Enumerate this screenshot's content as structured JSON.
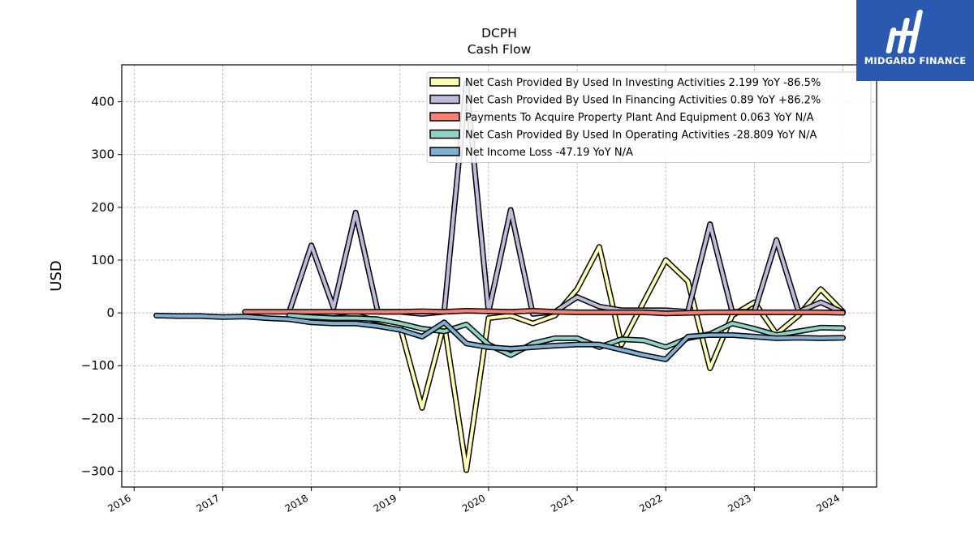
{
  "logo": {
    "text": "MIDGARD FINANCE",
    "bg": "#2b59b0"
  },
  "chart_data": {
    "type": "line",
    "title": "DCPH",
    "subtitle": "Cash Flow",
    "ylabel": "USD",
    "xlabel": "",
    "xlim": [
      2015.86,
      2024.38
    ],
    "ylim": [
      -330,
      470
    ],
    "xticks": [
      "2016",
      "2017",
      "2018",
      "2019",
      "2020",
      "2021",
      "2022",
      "2023",
      "2024"
    ],
    "yticks": [
      400,
      300,
      200,
      100,
      0,
      -100,
      -200,
      -300
    ],
    "ytick_labels": [
      "400",
      "300",
      "200",
      "100",
      "0",
      "−100",
      "−200",
      "−300"
    ],
    "grid": true,
    "legend_position": "top-right",
    "series": [
      {
        "name": "Net Cash Provided By Used In Investing Activities  2.199 YoY -86.5%",
        "color": "#ffffb3",
        "x": [
          2017.75,
          2018.0,
          2018.25,
          2018.5,
          2018.75,
          2019.0,
          2019.25,
          2019.5,
          2019.75,
          2020.0,
          2020.25,
          2020.5,
          2020.75,
          2021.0,
          2021.25,
          2021.5,
          2021.75,
          2022.0,
          2022.25,
          2022.5,
          2022.75,
          2023.0,
          2023.25,
          2023.5,
          2023.75,
          2024.0
        ],
        "y": [
          -5,
          -8,
          -10,
          -5,
          -15,
          -25,
          -180,
          -20,
          -298,
          -10,
          -5,
          -20,
          -5,
          45,
          125,
          -60,
          20,
          100,
          60,
          -105,
          -5,
          20,
          -40,
          -5,
          45,
          2.2
        ]
      },
      {
        "name": "Net Cash Provided By Used In Financing Activities  0.89 YoY +86.2%",
        "color": "#bebada",
        "x": [
          2017.75,
          2018.0,
          2018.25,
          2018.5,
          2018.75,
          2019.0,
          2019.25,
          2019.5,
          2019.75,
          2020.0,
          2020.25,
          2020.5,
          2020.75,
          2021.0,
          2021.25,
          2021.5,
          2021.75,
          2022.0,
          2022.25,
          2022.5,
          2022.75,
          2023.0,
          2023.25,
          2023.5,
          2023.75,
          2024.0
        ],
        "y": [
          2,
          128,
          10,
          190,
          2,
          2,
          -2,
          2,
          435,
          2,
          195,
          -2,
          2,
          30,
          12,
          5,
          5,
          5,
          2,
          168,
          2,
          2,
          138,
          2,
          20,
          0.9
        ]
      },
      {
        "name": "Payments To Acquire Property Plant And Equipment  0.063 YoY N/A",
        "color": "#fb8072",
        "x": [
          2017.25,
          2017.5,
          2017.75,
          2018.0,
          2018.25,
          2018.5,
          2018.75,
          2019.0,
          2019.25,
          2019.5,
          2019.75,
          2020.0,
          2020.25,
          2020.5,
          2020.75,
          2021.0,
          2021.25,
          2021.5,
          2021.75,
          2022.0,
          2022.25,
          2022.5,
          2022.75,
          2023.0,
          2023.25,
          2023.5,
          2023.75,
          2024.0
        ],
        "y": [
          2,
          2,
          2,
          2,
          2,
          2,
          2,
          2,
          3,
          2,
          4,
          3,
          2,
          4,
          2,
          1,
          1,
          1,
          1,
          -1,
          0,
          1,
          1,
          1,
          1,
          1,
          1,
          0.06
        ]
      },
      {
        "name": "Net Cash Provided By Used In Operating Activities  -28.809 YoY N/A",
        "color": "#8dd3c7",
        "x": [
          2017.75,
          2018.0,
          2018.25,
          2018.5,
          2018.75,
          2019.0,
          2019.25,
          2019.5,
          2019.75,
          2020.0,
          2020.25,
          2020.5,
          2020.75,
          2021.0,
          2021.25,
          2021.5,
          2021.75,
          2022.0,
          2022.25,
          2022.5,
          2022.75,
          2023.0,
          2023.25,
          2023.5,
          2023.75,
          2024.0
        ],
        "y": [
          -5,
          -8,
          -10,
          -10,
          -12,
          -20,
          -30,
          -35,
          -22,
          -60,
          -80,
          -58,
          -48,
          -48,
          -65,
          -50,
          -52,
          -65,
          -48,
          -40,
          -20,
          -30,
          -42,
          -35,
          -28,
          -28.8
        ]
      },
      {
        "name": "Net Income Loss  -47.19 YoY N/A",
        "color": "#80b1d3",
        "x": [
          2016.25,
          2016.5,
          2016.75,
          2017.0,
          2017.25,
          2017.5,
          2017.75,
          2018.0,
          2018.25,
          2018.5,
          2018.75,
          2019.0,
          2019.25,
          2019.5,
          2019.75,
          2020.0,
          2020.25,
          2020.5,
          2020.75,
          2021.0,
          2021.25,
          2021.5,
          2021.75,
          2022.0,
          2022.25,
          2022.5,
          2022.75,
          2023.0,
          2023.25,
          2023.5,
          2023.75,
          2024.0
        ],
        "y": [
          -5,
          -6,
          -6,
          -8,
          -7,
          -10,
          -12,
          -18,
          -20,
          -20,
          -25,
          -32,
          -45,
          -18,
          -58,
          -65,
          -68,
          -65,
          -62,
          -60,
          -60,
          -70,
          -80,
          -88,
          -45,
          -42,
          -42,
          -45,
          -48,
          -47,
          -48,
          -47.2
        ]
      }
    ]
  }
}
